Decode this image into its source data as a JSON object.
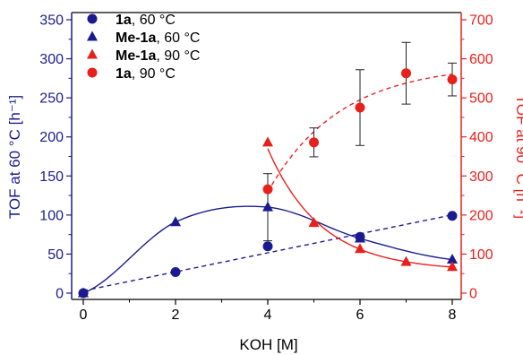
{
  "chart_data": {
    "type": "scatter",
    "xlabel": "KOH [M]",
    "ylabel_left": "TOF at 60 °C [h⁻¹]",
    "ylabel_right": "TOF at 90 °C [h⁻¹]",
    "xlim": [
      0,
      8
    ],
    "ylim_left": [
      0,
      350
    ],
    "ylim_right": [
      0,
      700
    ],
    "xticks": [
      "0",
      "2",
      "4",
      "6",
      "8"
    ],
    "yticks_left": [
      "0",
      "50",
      "100",
      "150",
      "200",
      "250",
      "300",
      "350"
    ],
    "yticks_right": [
      "0",
      "100",
      "200",
      "300",
      "400",
      "500",
      "600",
      "700"
    ],
    "legend_position": "top-left",
    "colors": {
      "left_axis": "#1b1b8f",
      "right_axis": "#e8201c"
    },
    "series": [
      {
        "name_bold": "1a",
        "name_rest": ", 60 °C",
        "axis": "left",
        "marker": "circle",
        "color": "#1b1b8f",
        "line_style": "dashed",
        "x": [
          0,
          2,
          4,
          6,
          8
        ],
        "y": [
          0,
          27,
          60,
          72,
          99
        ]
      },
      {
        "name_bold": "Me-1a",
        "name_rest": ", 60 °C",
        "axis": "left",
        "marker": "triangle",
        "color": "#1b1b8f",
        "line_style": "solid",
        "x": [
          0,
          2,
          4,
          6,
          8
        ],
        "y": [
          0,
          91,
          110,
          70,
          43
        ],
        "yerr": [
          0,
          0,
          43,
          0,
          0
        ]
      },
      {
        "name_bold": "Me-1a",
        "name_rest": ", 90 °C",
        "axis": "right",
        "marker": "triangle",
        "color": "#e8201c",
        "line_style": "solid",
        "x": [
          4,
          5,
          6,
          7,
          8
        ],
        "y": [
          386,
          180,
          113,
          80,
          67
        ]
      },
      {
        "name_bold": "1a",
        "name_rest": ", 90 °C",
        "axis": "right",
        "marker": "circle",
        "color": "#e8201c",
        "line_style": "dashed",
        "x": [
          4,
          5,
          6,
          7,
          8
        ],
        "y": [
          266,
          386,
          475,
          563,
          547
        ],
        "yerr": [
          0,
          37,
          97,
          79,
          42
        ]
      }
    ]
  }
}
